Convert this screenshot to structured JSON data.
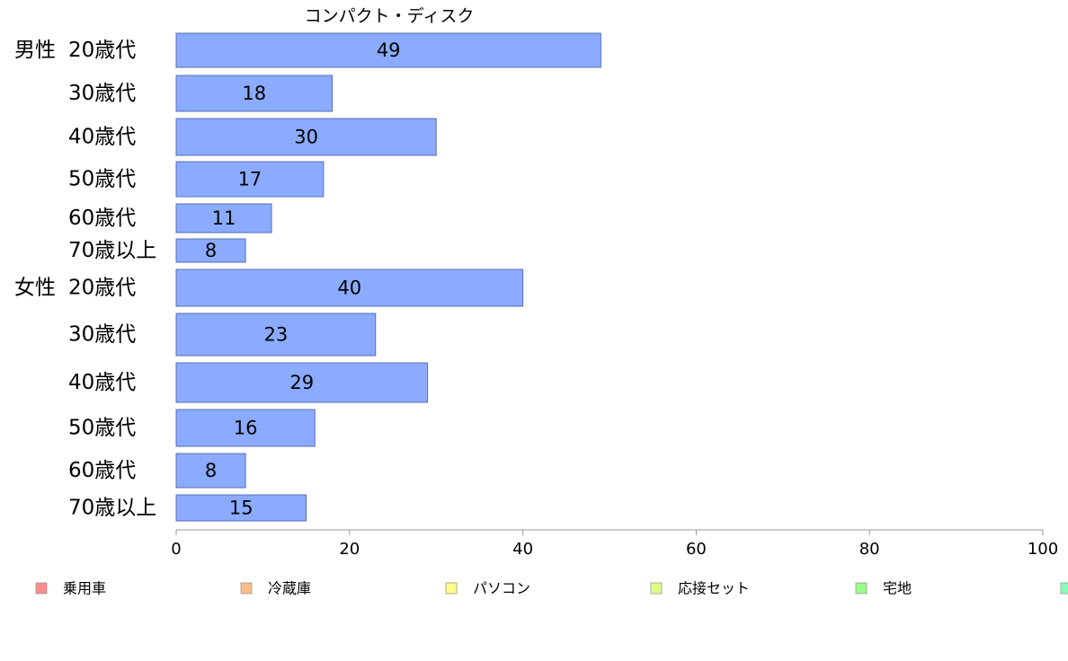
{
  "chart_data": {
    "type": "bar",
    "orientation": "horizontal",
    "title": "コンパクト・ディスク",
    "groups": [
      {
        "name": "男性",
        "categories": [
          "20歳代",
          "30歳代",
          "40歳代",
          "50歳代",
          "60歳代",
          "70歳以上"
        ],
        "values": [
          49,
          18,
          30,
          17,
          11,
          8
        ]
      },
      {
        "name": "女性",
        "categories": [
          "20歳代",
          "30歳代",
          "40歳代",
          "50歳代",
          "60歳代",
          "70歳以上"
        ],
        "values": [
          40,
          23,
          29,
          16,
          8,
          15
        ]
      }
    ],
    "xlim": [
      0,
      100
    ],
    "xticks": [
      0,
      20,
      40,
      60,
      80,
      100
    ],
    "bar_color": "#8aabff",
    "bar_border_color": "#5a6fb4",
    "grid": false,
    "legend": {
      "placement": "bottom",
      "items": [
        {
          "label": "乗用車",
          "color": "#ff8a8a"
        },
        {
          "label": "冷蔵庫",
          "color": "#ffbb88"
        },
        {
          "label": "パソコン",
          "color": "#ffff88"
        },
        {
          "label": "応接セット",
          "color": "#ddff88"
        },
        {
          "label": "宅地",
          "color": "#99ff88"
        },
        {
          "label": "",
          "color": "#88ffbb"
        }
      ]
    }
  }
}
